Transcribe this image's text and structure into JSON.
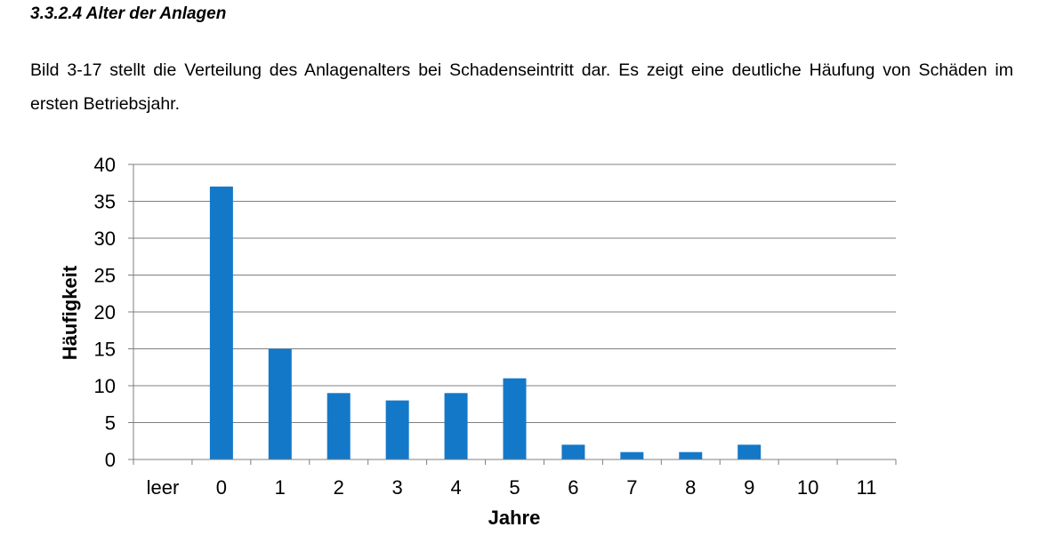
{
  "heading": "3.3.2.4 Alter der Anlagen",
  "paragraph": "Bild 3-17 stellt die Verteilung des Anlagenalters bei Schadenseintritt dar. Es zeigt eine deutliche Häufung von Schäden im ersten Betriebsjahr.",
  "chart_data": {
    "type": "bar",
    "title": "",
    "xlabel": "Jahre",
    "ylabel": "Häufigkeit",
    "categories": [
      "leer",
      "0",
      "1",
      "2",
      "3",
      "4",
      "5",
      "6",
      "7",
      "8",
      "9",
      "10",
      "11"
    ],
    "values": [
      0,
      37,
      15,
      9,
      8,
      9,
      11,
      2,
      1,
      1,
      2,
      0,
      0
    ],
    "ylim": [
      0,
      40
    ],
    "yticks": [
      0,
      5,
      10,
      15,
      20,
      25,
      30,
      35,
      40
    ],
    "grid": true,
    "legend": "none",
    "bar_color": "#1478c8"
  }
}
